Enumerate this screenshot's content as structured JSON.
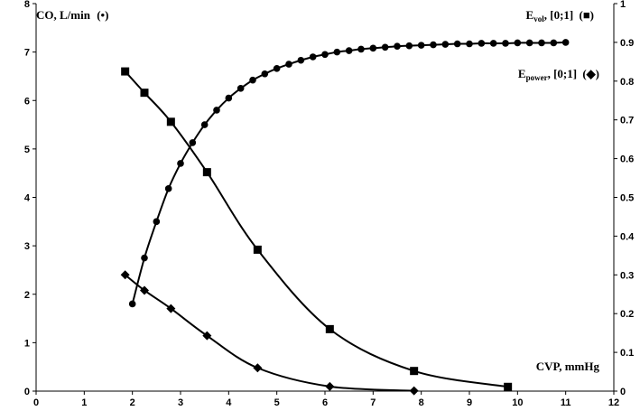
{
  "chart_data": {
    "type": "line",
    "xlim": [
      0,
      12
    ],
    "ylim_left": [
      0,
      8
    ],
    "ylim_right": [
      0,
      1
    ],
    "x_ticks": [
      "0",
      "1",
      "2",
      "3",
      "4",
      "5",
      "6",
      "7",
      "8",
      "9",
      "10",
      "11",
      "12"
    ],
    "y_left_ticks": [
      "0",
      "1",
      "2",
      "3",
      "4",
      "5",
      "6",
      "7",
      "8"
    ],
    "y_right_ticks": [
      "0",
      "0.1",
      "0.2",
      "0.3",
      "0.4",
      "0.5",
      "0.6",
      "0.7",
      "0.8",
      "0.9",
      "1"
    ],
    "grid": false,
    "labels": {
      "left_axis": "CO, L/min",
      "left_axis_marker": "(•)",
      "right_axis_evol_base": "E",
      "right_axis_evol_sub": "vol",
      "right_axis_evol_rest": ", [0;1]",
      "right_axis_evol_marker": "(■)",
      "right_axis_epower_base": "E",
      "right_axis_epower_sub": "power",
      "right_axis_epower_rest": ", [0;1]",
      "right_axis_epower_marker": "(◆)",
      "x_axis": "CVP, mmHg"
    },
    "series": [
      {
        "axis": "left",
        "marker": "circle",
        "x": [
          2.0,
          2.25,
          2.5,
          2.75,
          3.0,
          3.25,
          3.5,
          3.75,
          4.0,
          4.25,
          4.5,
          4.75,
          5.0,
          5.25,
          5.5,
          5.75,
          6.0,
          6.25,
          6.5,
          6.75,
          7.0,
          7.25,
          7.5,
          7.75,
          8.0,
          8.25,
          8.5,
          8.75,
          9.0,
          9.25,
          9.5,
          9.75,
          10.0,
          10.25,
          10.5,
          10.75,
          11.0
        ],
        "y": [
          1.8,
          2.75,
          3.5,
          4.18,
          4.7,
          5.13,
          5.5,
          5.8,
          6.05,
          6.25,
          6.42,
          6.55,
          6.66,
          6.75,
          6.83,
          6.9,
          6.95,
          7.0,
          7.03,
          7.06,
          7.08,
          7.1,
          7.12,
          7.13,
          7.14,
          7.15,
          7.16,
          7.17,
          7.17,
          7.18,
          7.18,
          7.18,
          7.19,
          7.19,
          7.19,
          7.19,
          7.2
        ]
      },
      {
        "axis": "right",
        "marker": "square",
        "x": [
          1.85,
          2.25,
          2.8,
          3.55,
          4.6,
          6.1,
          7.85,
          9.8
        ],
        "y": [
          0.825,
          0.77,
          0.695,
          0.565,
          0.365,
          0.16,
          0.052,
          0.011
        ]
      },
      {
        "axis": "right",
        "marker": "diamond",
        "x": [
          1.85,
          2.25,
          2.8,
          3.55,
          4.6,
          6.1,
          7.85
        ],
        "y": [
          0.3,
          0.26,
          0.213,
          0.143,
          0.06,
          0.012,
          0.001
        ]
      }
    ]
  }
}
